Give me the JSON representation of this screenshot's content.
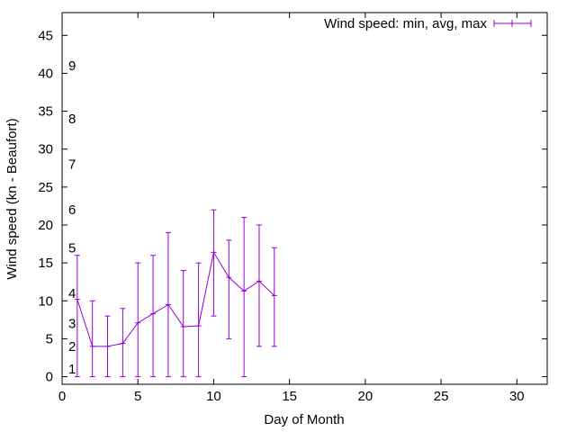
{
  "chart_data": {
    "type": "line",
    "title": "",
    "xlabel": "Day of Month",
    "ylabel": "Wind speed (kn - Beaufort)",
    "xlim": [
      0,
      32
    ],
    "ylim": [
      -1,
      48
    ],
    "xticks": [
      0,
      5,
      10,
      15,
      20,
      25,
      30
    ],
    "yticks": [
      0,
      5,
      10,
      15,
      20,
      25,
      30,
      35,
      40,
      45
    ],
    "grid": false,
    "legend_position": "top-right",
    "series": [
      {
        "name": "Wind speed: min, avg, max",
        "color": "#9400d3",
        "style": "errorbars-with-line",
        "x": [
          1,
          2,
          3,
          4,
          5,
          6,
          7,
          8,
          9,
          10,
          11,
          12,
          13,
          14
        ],
        "avg": [
          10.2,
          4.0,
          4.0,
          4.4,
          7.1,
          8.3,
          9.5,
          6.6,
          6.7,
          16.4,
          13.1,
          11.3,
          12.6,
          10.7
        ],
        "min": [
          0,
          0,
          0,
          0,
          0,
          0,
          0,
          0,
          0,
          8,
          5,
          0,
          4,
          4
        ],
        "max": [
          16,
          10,
          8,
          9,
          15,
          16,
          19,
          14,
          15,
          22,
          18,
          21,
          20,
          17
        ]
      }
    ],
    "annotations": [
      {
        "text": "1",
        "y": 1
      },
      {
        "text": "2",
        "y": 4
      },
      {
        "text": "3",
        "y": 7
      },
      {
        "text": "4",
        "y": 11
      },
      {
        "text": "5",
        "y": 17
      },
      {
        "text": "6",
        "y": 22
      },
      {
        "text": "7",
        "y": 28
      },
      {
        "text": "8",
        "y": 34
      },
      {
        "text": "9",
        "y": 41
      }
    ]
  }
}
